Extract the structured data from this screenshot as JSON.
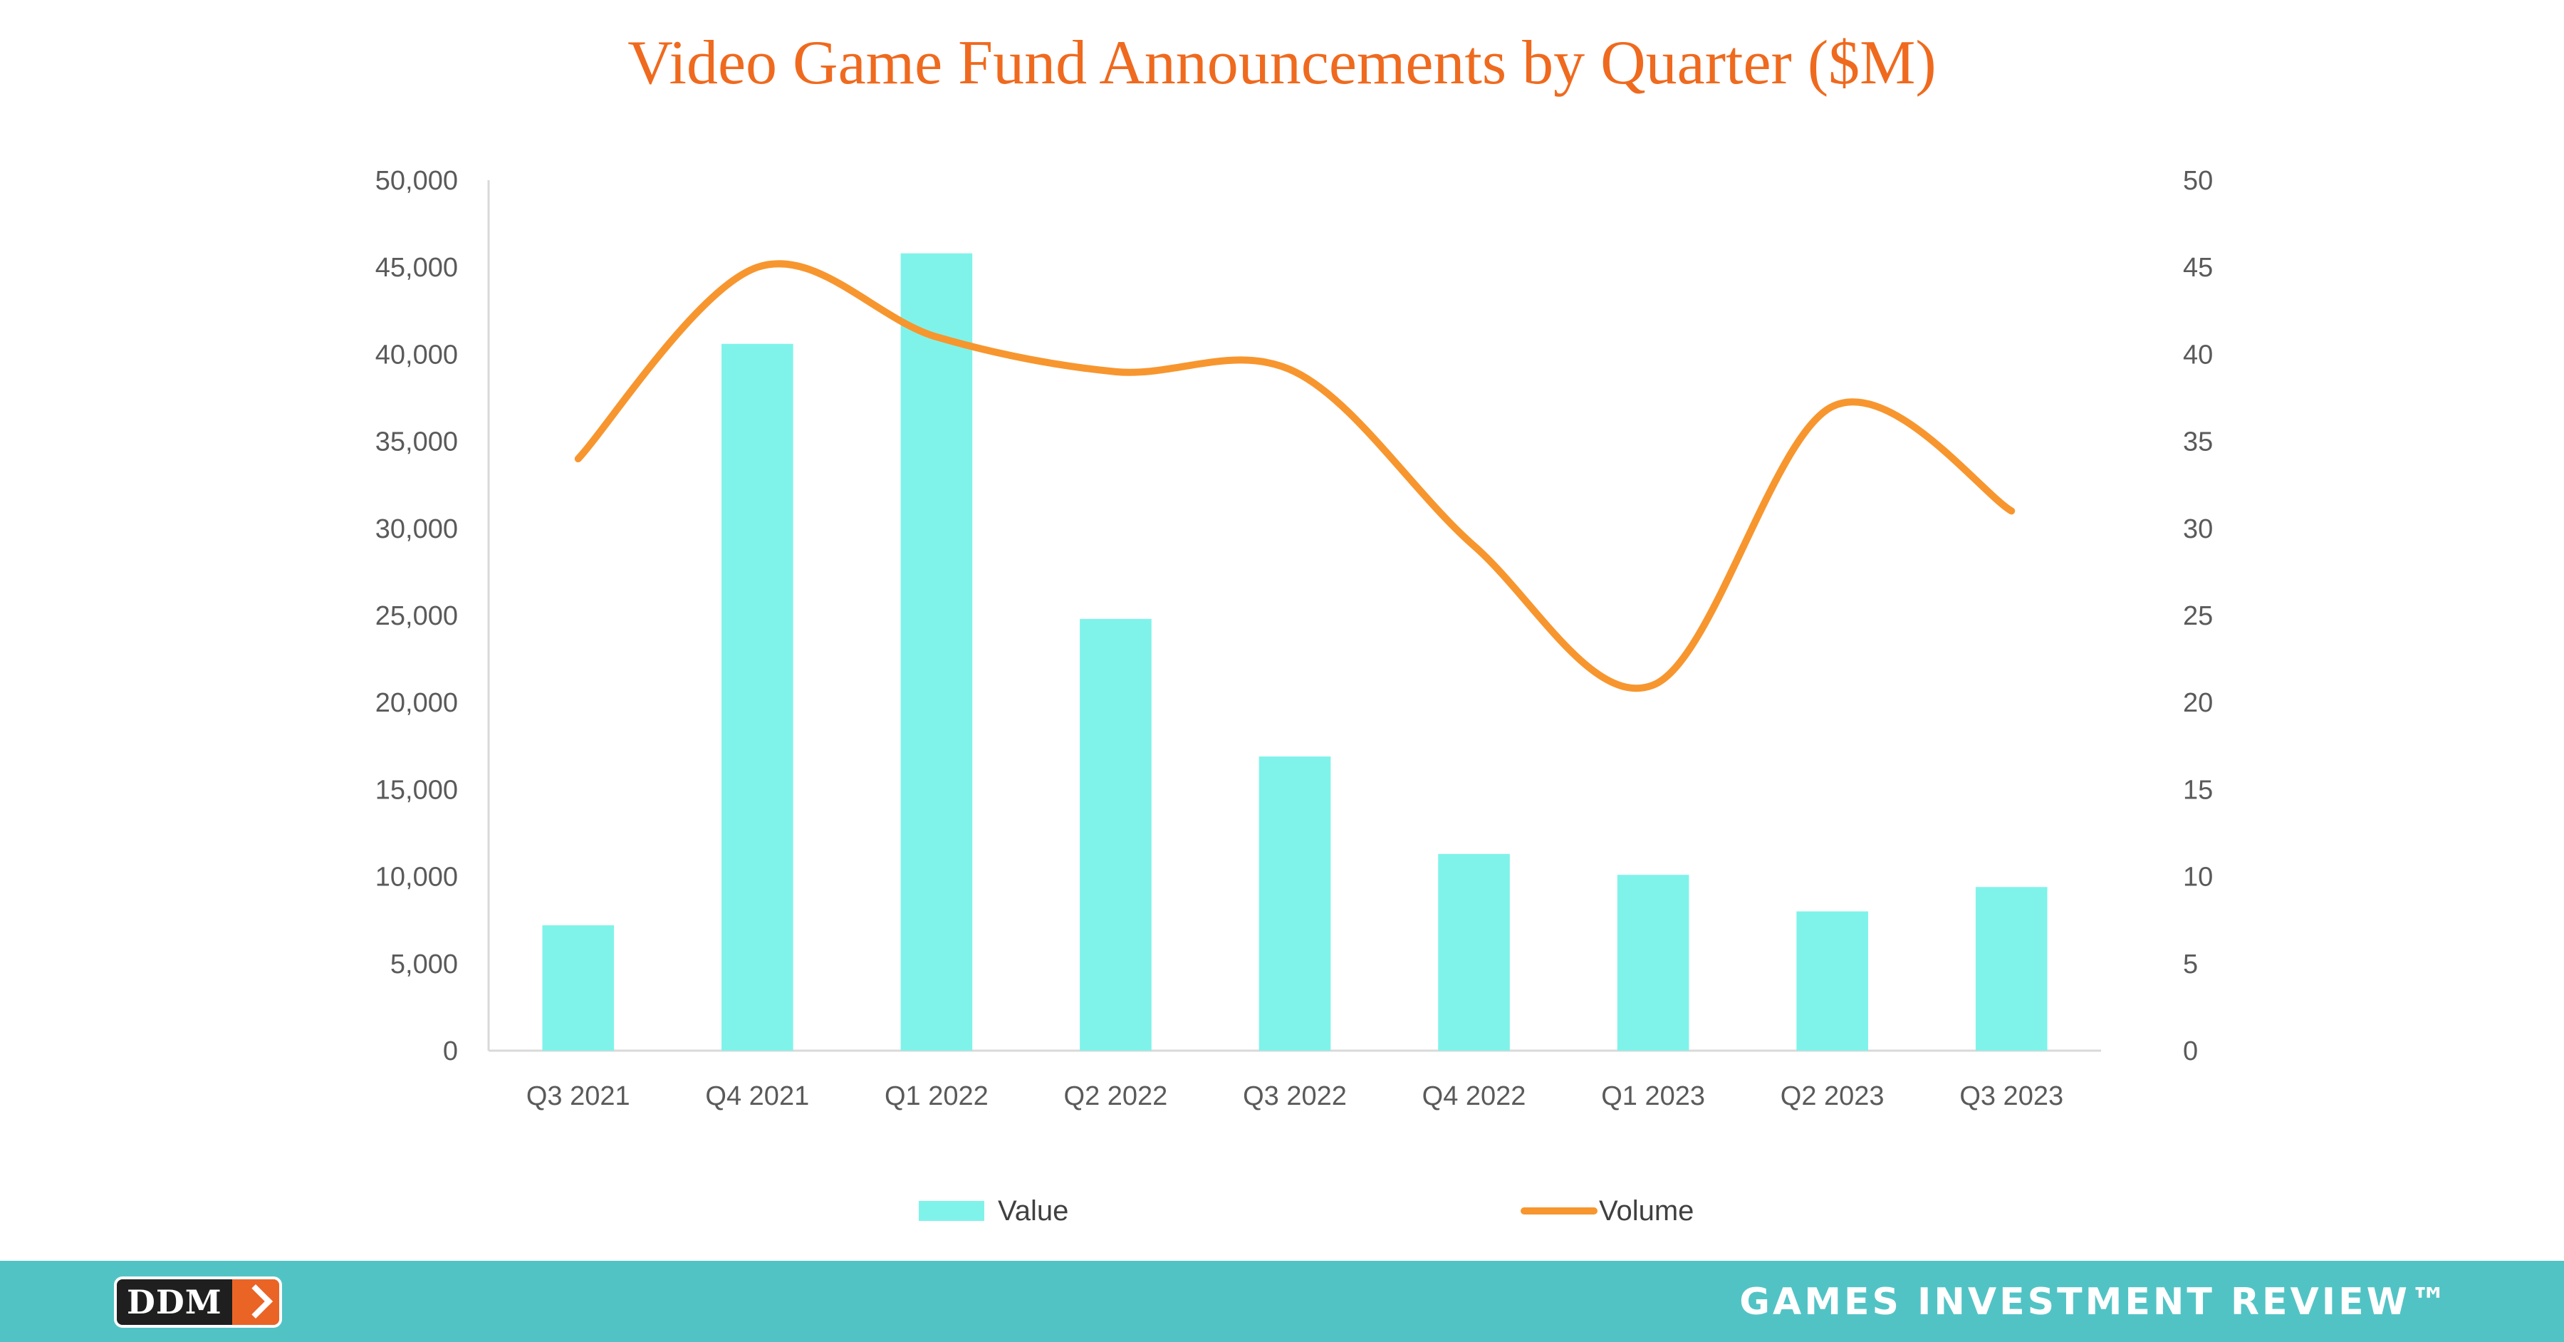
{
  "chart_data": {
    "type": "bar",
    "title": "Video Game Fund Announcements by Quarter ($M)",
    "categories": [
      "Q3 2021",
      "Q4 2021",
      "Q1 2022",
      "Q2 2022",
      "Q3 2022",
      "Q4 2022",
      "Q1 2023",
      "Q2 2023",
      "Q3 2023"
    ],
    "series": [
      {
        "name": "Value",
        "type": "bar",
        "axis": "left",
        "color": "#7ff3ea",
        "values": [
          7200,
          40600,
          45800,
          24800,
          16900,
          11300,
          10100,
          8000,
          9400
        ]
      },
      {
        "name": "Volume",
        "type": "line",
        "axis": "right",
        "color": "#f7962e",
        "smooth": true,
        "values": [
          34,
          45,
          41,
          39,
          39,
          29,
          21,
          37,
          31
        ]
      }
    ],
    "ylim": [
      0,
      50000
    ],
    "y2lim": [
      0,
      50
    ],
    "yticks": [
      "0",
      "5,000",
      "10,000",
      "15,000",
      "20,000",
      "25,000",
      "30,000",
      "35,000",
      "40,000",
      "45,000",
      "50,000"
    ],
    "y2ticks": [
      "0",
      "5",
      "10",
      "15",
      "20",
      "25",
      "30",
      "35",
      "40",
      "45",
      "50"
    ],
    "grid": false,
    "legend_position": "bottom"
  },
  "footer": {
    "logo_text": "DDM",
    "brand_text": "GAMES INVESTMENT REVIEW™"
  }
}
